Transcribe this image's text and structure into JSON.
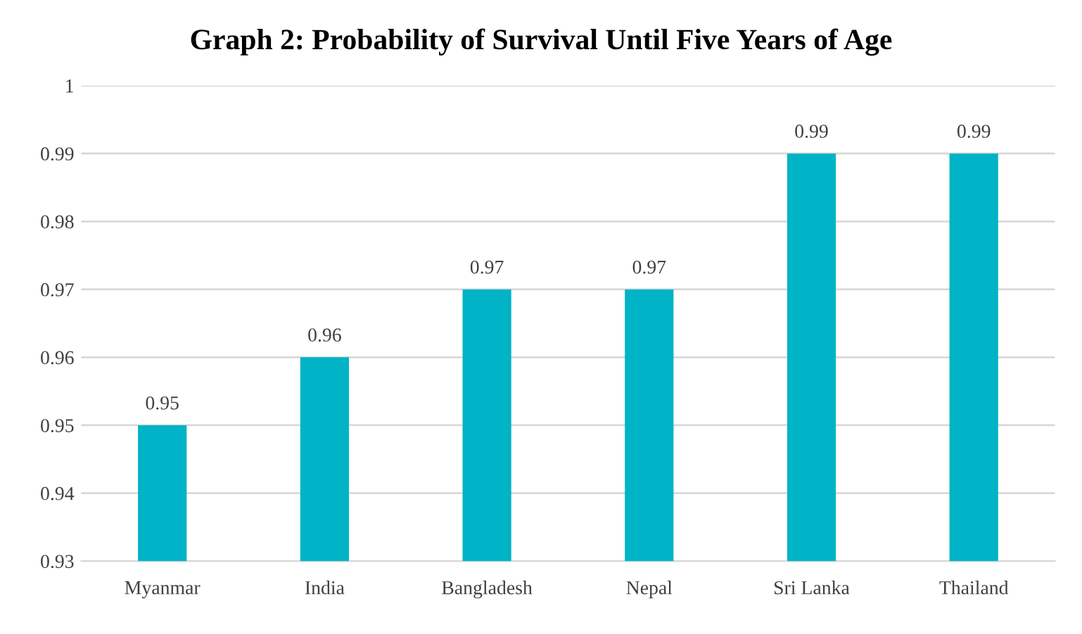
{
  "chart_data": {
    "type": "bar",
    "title": "Graph 2: Probability of Survival Until Five Years of Age",
    "categories": [
      "Myanmar",
      "India",
      "Bangladesh",
      "Nepal",
      "Sri Lanka",
      "Thailand"
    ],
    "values": [
      0.95,
      0.96,
      0.97,
      0.97,
      0.99,
      0.99
    ],
    "color": "#00b3c6",
    "ylim": [
      0.93,
      1
    ],
    "yticks": [
      0.93,
      0.94,
      0.95,
      0.96,
      0.97,
      0.98,
      0.99,
      1
    ],
    "grid": "y",
    "data_labels": true
  }
}
